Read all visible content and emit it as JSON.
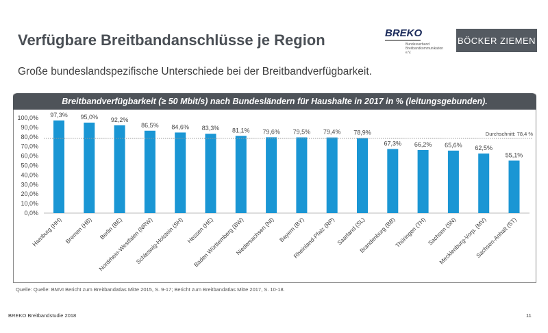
{
  "slide": {
    "title": "Verfügbare Breitbandanschlüsse je Region",
    "subtitle": "Große bundeslandspezifische Unterschiede bei der Breitbandverfügbarkeit.",
    "source": "Quelle: Quelle: BMVI Bericht zum Breitbandatlas Mitte 2015, S. 9-17; Bericht zum Breitbandatlas Mitte 2017, S. 10-18.",
    "footer": "BREKO Breitbandstudie 2018",
    "page_number": "11"
  },
  "logos": {
    "breko": {
      "name": "BREKO",
      "sub": "Bundesverband Breitbandkommunikation e.V."
    },
    "boecker": "BÖCKER ZIEMEN"
  },
  "chart_data": {
    "type": "bar",
    "title": "Breitbandverfügbarkeit (≥ 50 Mbit/s) nach Bundesländern für Haushalte in 2017 in % (leitungsgebunden).",
    "categories": [
      "Hamburg (HH)",
      "Bremen (HB)",
      "Berlin (BE)",
      "Nordrhein-Westfalen (NRW)",
      "Schleswig-Holstein (SH)",
      "Hessen (HE)",
      "Baden Württemberg (BW)",
      "Niedersachsen (NI)",
      "Bayern (BY)",
      "Rheinland-Pfalz (RP)",
      "Saarland (SL)",
      "Brandenburg (BB)",
      "Thüringen (TH)",
      "Sachsen (SN)",
      "Mecklenburg-Vorp. (MV)",
      "Sachsen-Anhalt (ST)"
    ],
    "values": [
      97.3,
      95.0,
      92.2,
      86.5,
      84.6,
      83.3,
      81.1,
      79.6,
      79.5,
      79.4,
      78.9,
      67.3,
      66.2,
      65.6,
      62.5,
      55.1
    ],
    "data_labels": [
      "97,3%",
      "95,0%",
      "92,2%",
      "86,5%",
      "84,6%",
      "83,3%",
      "81,1%",
      "79,6%",
      "79,5%",
      "79,4%",
      "78,9%",
      "67,3%",
      "66,2%",
      "65,6%",
      "62,5%",
      "55,1%"
    ],
    "yticks": [
      "0,0%",
      "10,0%",
      "20,0%",
      "30,0%",
      "40,0%",
      "50,0%",
      "60,0%",
      "70,0%",
      "80,0%",
      "90,0%",
      "100,0%"
    ],
    "ylim": [
      0,
      100
    ],
    "average": {
      "value": 78.4,
      "label": "Durchschnitt: 78,4 %"
    },
    "bar_color": "#1a96d4",
    "header_color": "#4e5359",
    "grid": false
  }
}
